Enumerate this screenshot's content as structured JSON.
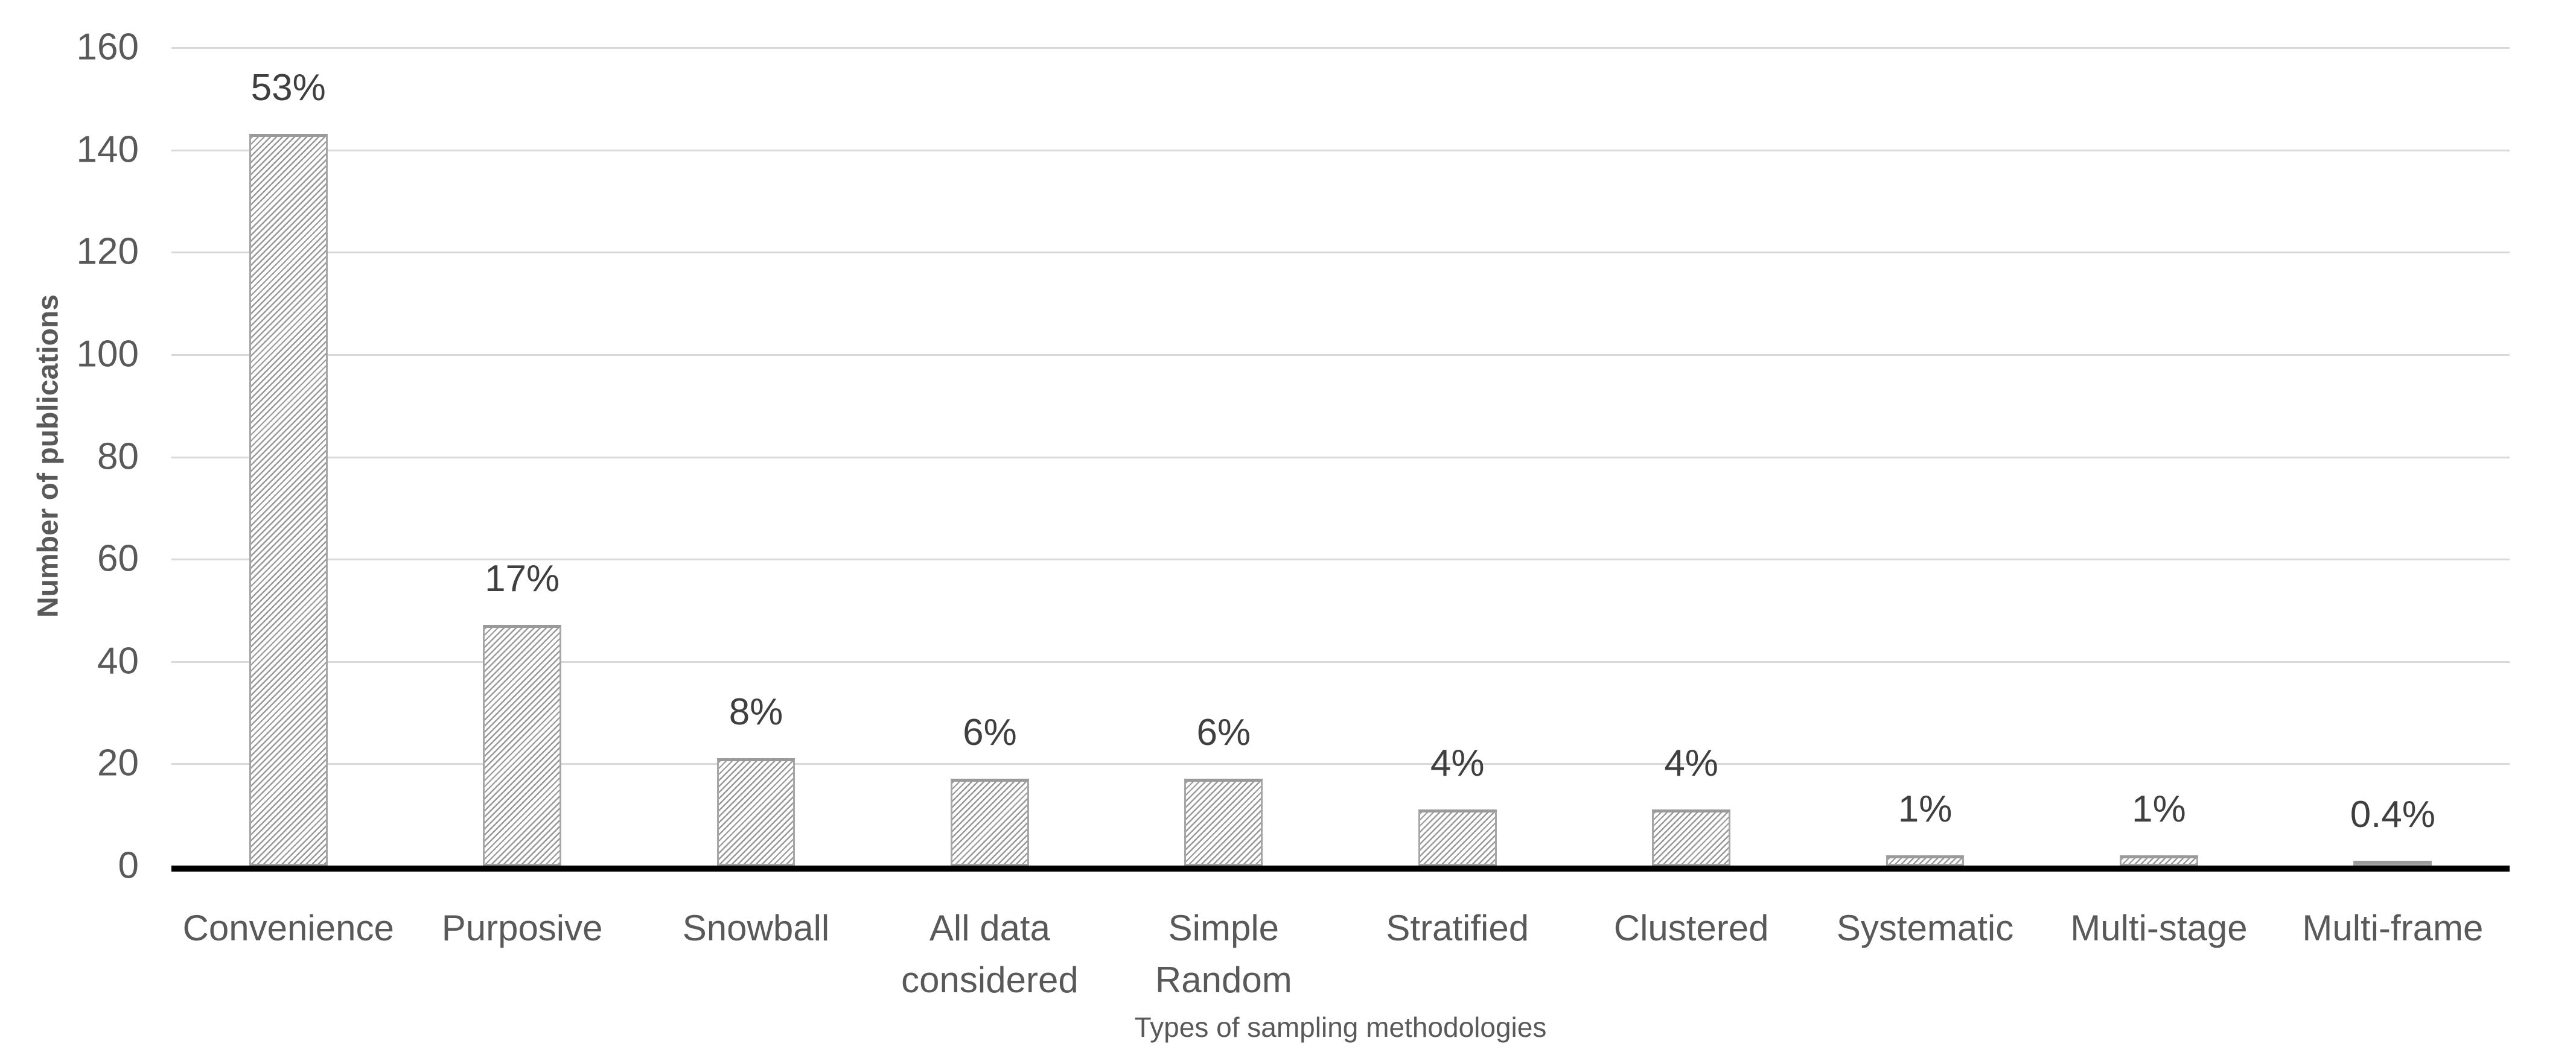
{
  "chart_data": {
    "type": "bar",
    "title": "",
    "categories": [
      "Convenience",
      "Purposive",
      "Snowball",
      "All data considered",
      "Simple Random",
      "Stratified",
      "Clustered",
      "Systematic",
      "Multi-stage",
      "Multi-frame"
    ],
    "values": [
      143,
      47,
      21,
      17,
      17,
      11,
      11,
      2,
      2,
      1
    ],
    "value_labels": [
      "53%",
      "17%",
      "8%",
      "6%",
      "6%",
      "4%",
      "4%",
      "1%",
      "1%",
      "0.4%"
    ],
    "xlabel": "Types of sampling methodologies",
    "ylabel": "Number of publications",
    "ylim": [
      0,
      160
    ],
    "yticks": [
      0,
      20,
      40,
      60,
      80,
      100,
      120,
      140,
      160
    ],
    "grid": true,
    "legend_position": "none",
    "bar_fill": "diagonal-hatch"
  },
  "colors": {
    "background": "#ffffff",
    "gridline": "#d9d9d9",
    "axis_line": "#000000",
    "bar_hatch_line": "#999999",
    "bar_border": "#a6a6a6",
    "bar_fill": "#ffffff",
    "tick_label": "#595959",
    "category_label": "#595959",
    "data_label": "#3f3f3f",
    "axis_title": "#595959"
  }
}
